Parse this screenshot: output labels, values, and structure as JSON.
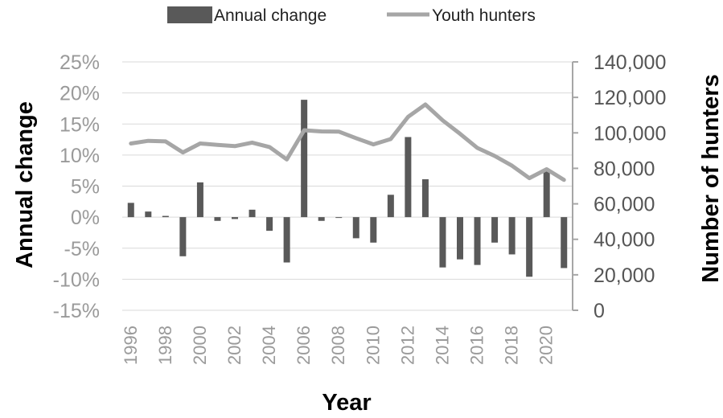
{
  "chart_data": {
    "type": "bar",
    "categories": [
      "1996",
      "1997",
      "1998",
      "1999",
      "2000",
      "2001",
      "2002",
      "2003",
      "2004",
      "2005",
      "2006",
      "2007",
      "2008",
      "2009",
      "2010",
      "2011",
      "2012",
      "2013",
      "2014",
      "2015",
      "2016",
      "2017",
      "2018",
      "2019",
      "2020",
      "2021"
    ],
    "x_tick_labels": [
      "1996",
      "1998",
      "2000",
      "2002",
      "2004",
      "2006",
      "2008",
      "2010",
      "2012",
      "2014",
      "2016",
      "2018",
      "2020"
    ],
    "series": [
      {
        "name": "Annual change",
        "type": "bar",
        "axis": "left",
        "color": "#595959",
        "values": [
          2.3,
          0.9,
          0.2,
          -6.3,
          5.6,
          -0.6,
          -0.3,
          1.2,
          -2.2,
          -7.3,
          18.9,
          -0.6,
          0.0,
          -3.4,
          -4.1,
          3.6,
          12.9,
          6.1,
          -8.1,
          -6.8,
          -7.7,
          -4.1,
          -6.0,
          -9.6,
          7.5,
          -8.2
        ]
      },
      {
        "name": "Youth hunters",
        "type": "line",
        "axis": "right",
        "color": "#a6a6a6",
        "values": [
          94000,
          95500,
          95200,
          89000,
          94000,
          93200,
          92500,
          94500,
          92000,
          85000,
          101500,
          100800,
          100700,
          97000,
          93500,
          96500,
          109000,
          116000,
          107000,
          99500,
          91500,
          87000,
          81500,
          74500,
          79500,
          73500
        ]
      }
    ],
    "y_left": {
      "label": "Annual change",
      "range": [
        -15,
        25
      ],
      "ticks": [
        -15,
        -10,
        -5,
        0,
        5,
        10,
        15,
        20,
        25
      ],
      "tick_labels": [
        "-15%",
        "-10%",
        "-5%",
        "0%",
        "5%",
        "10%",
        "15%",
        "20%",
        "25%"
      ]
    },
    "y_right": {
      "label": "Number of hunters",
      "range": [
        0,
        140000
      ],
      "ticks": [
        0,
        20000,
        40000,
        60000,
        80000,
        100000,
        120000,
        140000
      ],
      "tick_labels": [
        "0",
        "20,000",
        "40,000",
        "60,000",
        "80,000",
        "100,000",
        "120,000",
        "140,000"
      ]
    },
    "xlabel": "Year",
    "grid": true,
    "legend_position": "top",
    "colors": {
      "grid": "#d9d9d9",
      "axis": "#a6a6a6"
    }
  }
}
